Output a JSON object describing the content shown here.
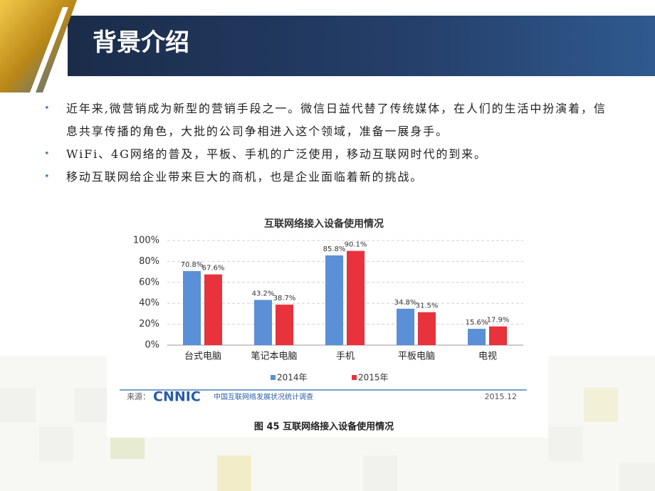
{
  "header": {
    "title": "背景介绍"
  },
  "bullets": [
    "近年来,微营销成为新型的营销手段之一。微信日益代替了传统媒体，在人们的生活中扮演着，信息共享传播的角色，大批的公司争相进入这个领域，准备一展身手。",
    "WiFi、4G网络的普及，平板、手机的广泛使用，移动互联网时代的到来。",
    "移动互联网给企业带来巨大的商机，也是企业面临着新的挑战。"
  ],
  "chart_data": {
    "type": "bar",
    "title": "互联网络接入设备使用情况",
    "categories": [
      "台式电脑",
      "笔记本电脑",
      "手机",
      "平板电脑",
      "电视"
    ],
    "series": [
      {
        "name": "2014年",
        "color": "#5b8fd6",
        "values": [
          70.8,
          43.2,
          85.8,
          34.8,
          15.6
        ],
        "value_labels": [
          "70.8%",
          "43.2%",
          "85.8%",
          "34.8%",
          "15.6%"
        ]
      },
      {
        "name": "2015年",
        "color": "#e8323c",
        "values": [
          67.6,
          38.7,
          90.1,
          31.5,
          17.9
        ],
        "value_labels": [
          "67.6%",
          "38.7%",
          "90.1%",
          "31.5%",
          "17.9%"
        ]
      }
    ],
    "ylim": [
      0,
      100
    ],
    "yticks": [
      {
        "value": 0,
        "label": "0%"
      },
      {
        "value": 20,
        "label": "20%"
      },
      {
        "value": 40,
        "label": "40%"
      },
      {
        "value": 60,
        "label": "60%"
      },
      {
        "value": 80,
        "label": "80%"
      },
      {
        "value": 100,
        "label": "100%"
      }
    ],
    "grid": true,
    "source_label": "来源：",
    "source_logo": "CNNIC",
    "source_text": "中国互联网络发展状况统计调查",
    "date": "2015.12",
    "caption": "图 45   互联网络接入设备使用情况"
  }
}
